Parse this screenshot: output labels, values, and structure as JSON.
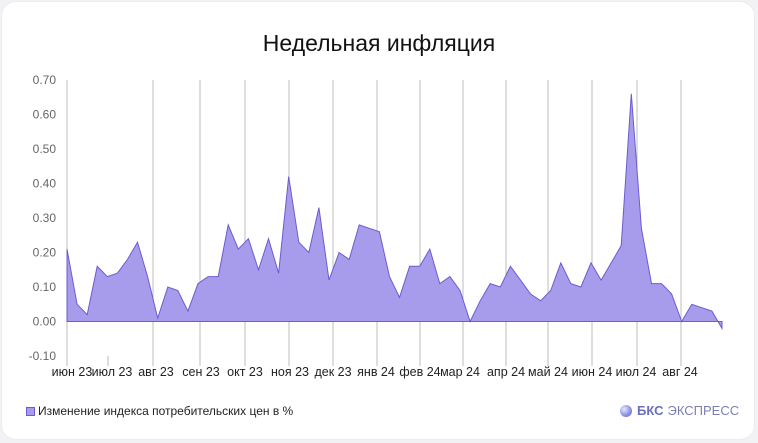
{
  "title": "Недельная инфляция",
  "legend": {
    "label": "Изменение индекса потребительских цен в %",
    "color": "#a79cec"
  },
  "brand": {
    "bold": "БКС",
    "rest": "ЭКСПРЕСС"
  },
  "colors": {
    "area_fill": "#a79cec",
    "area_stroke": "#6a5cd1",
    "grid": "#bdbdbd",
    "axis_text": "#666666"
  },
  "chart_data": {
    "type": "area",
    "title": "Недельная инфляция",
    "xlabel": "",
    "ylabel": "",
    "ylim": [
      -0.1,
      0.7
    ],
    "y_ticks": [
      "0.70",
      "0.60",
      "0.50",
      "0.40",
      "0.30",
      "0.20",
      "0.10",
      "0.00",
      "-0.10"
    ],
    "x_tick_labels": [
      "июн 23",
      "июл 23",
      "авг 23",
      "сен 23",
      "окт 23",
      "ноя 23",
      "дек 23",
      "янв 24",
      "фев 24",
      "мар 24",
      "апр 24",
      "май 24",
      "июн 24",
      "июл 24",
      "авг 24"
    ],
    "legend": [
      "Изменение индекса потребительских цен в %"
    ],
    "grid": "vertical month lines",
    "series": [
      {
        "name": "Изменение индекса потребительских цен в %",
        "values": [
          0.21,
          0.05,
          0.02,
          0.16,
          0.13,
          0.14,
          0.18,
          0.23,
          0.13,
          0.01,
          0.1,
          0.09,
          0.03,
          0.11,
          0.13,
          0.13,
          0.28,
          0.21,
          0.24,
          0.15,
          0.24,
          0.14,
          0.42,
          0.23,
          0.2,
          0.33,
          0.12,
          0.2,
          0.18,
          0.28,
          0.27,
          0.26,
          0.13,
          0.07,
          0.16,
          0.16,
          0.21,
          0.11,
          0.13,
          0.09,
          0.0,
          0.06,
          0.11,
          0.1,
          0.16,
          0.12,
          0.08,
          0.06,
          0.09,
          0.17,
          0.11,
          0.1,
          0.17,
          0.12,
          0.17,
          0.22,
          0.66,
          0.27,
          0.11,
          0.11,
          0.08,
          0.0,
          0.05,
          0.04,
          0.03,
          -0.02
        ]
      }
    ]
  }
}
